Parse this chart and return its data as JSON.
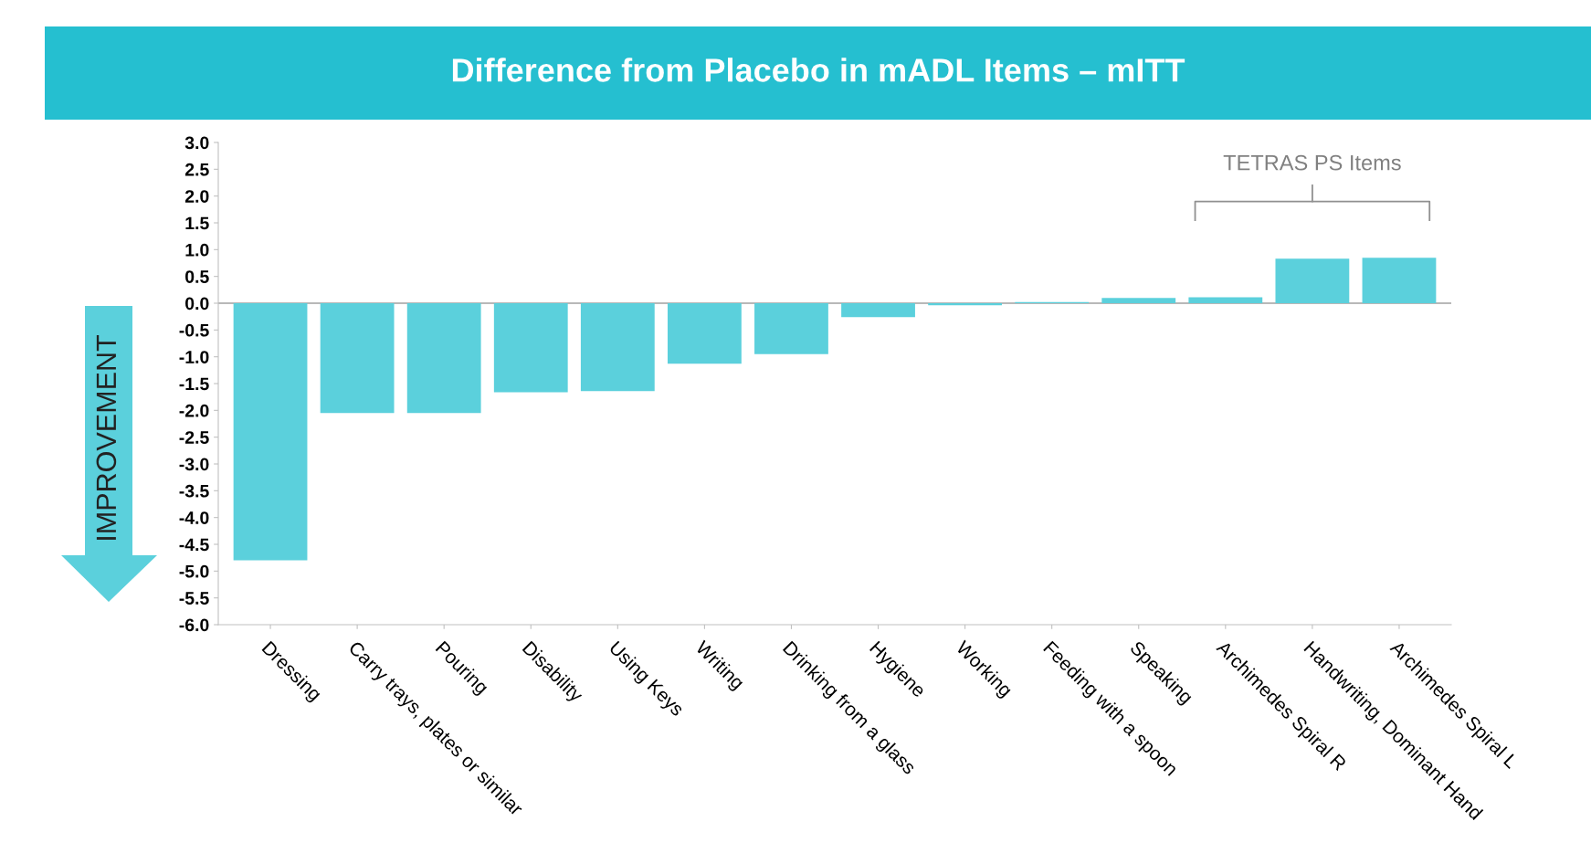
{
  "chart_data": {
    "type": "bar",
    "title": "Difference from Placebo in mADL Items – mITT",
    "ylabel": "IMPROVEMENT",
    "categories": [
      "Dressing",
      "Carry trays, plates or similar",
      "Pouring",
      "Disability",
      "Using Keys",
      "Writing",
      "Drinking from a glass",
      "Hygiene",
      "Working",
      "Feeding with a spoon",
      "Speaking",
      "Archimedes Spiral R",
      "Handwriting, Dominant Hand",
      "Archimedes Spiral L"
    ],
    "values": [
      -4.8,
      -2.05,
      -2.05,
      -1.66,
      -1.64,
      -1.13,
      -0.95,
      -0.26,
      -0.04,
      0.02,
      0.1,
      0.11,
      0.83,
      0.85
    ],
    "color": "#5bd0dc",
    "ylim": [
      -6.0,
      3.0
    ],
    "yticks": [
      {
        "value": 3,
        "label": "3.0"
      },
      {
        "value": 2.5,
        "label": "2.5"
      },
      {
        "value": 2,
        "label": "2.0"
      },
      {
        "value": 1.5,
        "label": "1.5"
      },
      {
        "value": 1,
        "label": "1.0"
      },
      {
        "value": 0.5,
        "label": "0.5"
      },
      {
        "value": 0,
        "label": "0.0"
      },
      {
        "value": -0.5,
        "label": "-0.5"
      },
      {
        "value": -1,
        "label": "-1.0"
      },
      {
        "value": -1.5,
        "label": "-1.5"
      },
      {
        "value": -2,
        "label": "-2.0"
      },
      {
        "value": -2.5,
        "label": "-2.5"
      },
      {
        "value": -3,
        "label": "-3.0"
      },
      {
        "value": -3.5,
        "label": "-3.5"
      },
      {
        "value": -4,
        "label": "-4.0"
      },
      {
        "value": -4.5,
        "label": "-4.5"
      },
      {
        "value": -5,
        "label": "-5.0"
      },
      {
        "value": -5.5,
        "label": "-5.5"
      },
      {
        "value": -6,
        "label": "-6.0"
      }
    ],
    "ref_lines": [
      {
        "axis": "y",
        "value": 0,
        "color": "#a0a0a0"
      }
    ],
    "annotations": [
      "TETRAS PS Items"
    ],
    "grid": false
  }
}
